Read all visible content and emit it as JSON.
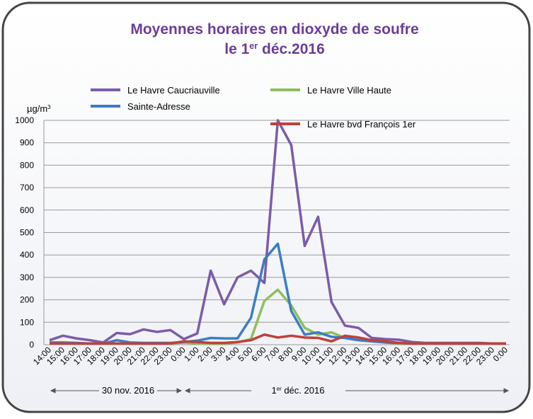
{
  "chart_data": {
    "type": "line",
    "title": "Moyennes horaires en dioxyde de soufre",
    "subtitle": [
      "le 1",
      "er",
      " déc.2016"
    ],
    "y_unit": [
      "µg/m",
      "3"
    ],
    "categories": [
      "14:00",
      "15:00",
      "16:00",
      "17:00",
      "18:00",
      "19:00",
      "20:00",
      "21:00",
      "22:00",
      "23:00",
      "0:00",
      "1:00",
      "2:00",
      "3:00",
      "4:00",
      "5:00",
      "6:00",
      "7:00",
      "8:00",
      "9:00",
      "10:00",
      "11:00",
      "12:00",
      "13:00",
      "14:00",
      "15:00",
      "16:00",
      "17:00",
      "18:00",
      "19:00",
      "20:00",
      "21:00",
      "22:00",
      "23:00",
      "0:00"
    ],
    "series": [
      {
        "name": "Le Havre Caucriauville",
        "color": "#7b5ca8",
        "values": [
          20,
          40,
          28,
          20,
          10,
          52,
          47,
          68,
          57,
          65,
          25,
          50,
          330,
          180,
          300,
          330,
          275,
          1000,
          890,
          440,
          570,
          190,
          85,
          75,
          30,
          25,
          22,
          12,
          8,
          8,
          8,
          8,
          8,
          5,
          5
        ]
      },
      {
        "name": "Le Havre Ville Haute",
        "color": "#8dbf5a",
        "values": [
          5,
          5,
          5,
          5,
          5,
          5,
          5,
          5,
          5,
          5,
          10,
          5,
          5,
          5,
          10,
          25,
          195,
          245,
          175,
          75,
          45,
          55,
          30,
          20,
          15,
          10,
          5,
          5,
          5,
          5,
          5,
          5,
          5,
          5,
          5
        ]
      },
      {
        "name": "Sainte-Adresse",
        "color": "#3a7dc4",
        "values": [
          10,
          10,
          8,
          5,
          5,
          20,
          10,
          8,
          8,
          8,
          12,
          18,
          30,
          28,
          28,
          120,
          380,
          450,
          150,
          45,
          55,
          35,
          30,
          20,
          15,
          10,
          8,
          5,
          5,
          5,
          5,
          5,
          5,
          5,
          5
        ]
      },
      {
        "name": "Le Havre bvd François 1er",
        "color": "#c0403a",
        "values": [
          5,
          5,
          5,
          5,
          5,
          5,
          5,
          5,
          5,
          5,
          15,
          12,
          8,
          8,
          12,
          20,
          45,
          32,
          40,
          32,
          30,
          15,
          40,
          32,
          20,
          15,
          8,
          5,
          5,
          5,
          5,
          5,
          5,
          5,
          5
        ]
      }
    ],
    "ylim": [
      0,
      1000
    ],
    "yticks": [
      0,
      100,
      200,
      300,
      400,
      500,
      600,
      700,
      800,
      900,
      1000
    ],
    "grid": true,
    "legend": "top",
    "annotations": [
      "30 nov. 2016",
      [
        "1",
        "er",
        " déc. 2016"
      ]
    ]
  }
}
